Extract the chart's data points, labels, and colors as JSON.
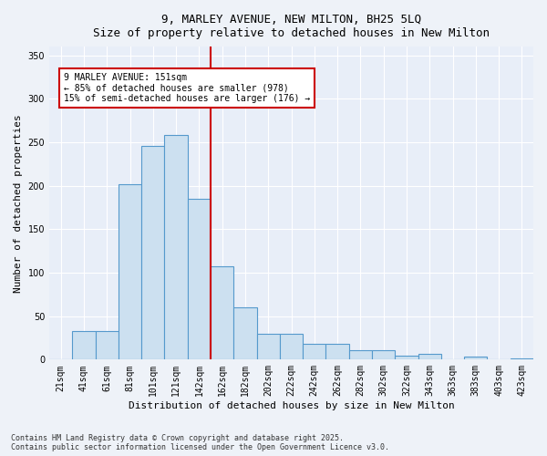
{
  "title1": "9, MARLEY AVENUE, NEW MILTON, BH25 5LQ",
  "title2": "Size of property relative to detached houses in New Milton",
  "xlabel": "Distribution of detached houses by size in New Milton",
  "ylabel": "Number of detached properties",
  "bar_labels": [
    "21sqm",
    "41sqm",
    "61sqm",
    "81sqm",
    "101sqm",
    "121sqm",
    "142sqm",
    "162sqm",
    "182sqm",
    "202sqm",
    "222sqm",
    "242sqm",
    "262sqm",
    "282sqm",
    "302sqm",
    "322sqm",
    "343sqm",
    "363sqm",
    "383sqm",
    "403sqm",
    "423sqm"
  ],
  "bar_values": [
    0,
    33,
    33,
    202,
    246,
    258,
    185,
    107,
    60,
    30,
    30,
    18,
    18,
    11,
    11,
    5,
    7,
    0,
    3,
    0,
    1
  ],
  "bar_color": "#cce0f0",
  "bar_edge_color": "#5599cc",
  "vline_color": "#cc0000",
  "annotation_title": "9 MARLEY AVENUE: 151sqm",
  "annotation_line1": "← 85% of detached houses are smaller (978)",
  "annotation_line2": "15% of semi-detached houses are larger (176) →",
  "annotation_box_facecolor": "#ffffff",
  "annotation_box_edgecolor": "#cc0000",
  "footer1": "Contains HM Land Registry data © Crown copyright and database right 2025.",
  "footer2": "Contains public sector information licensed under the Open Government Licence v3.0.",
  "bg_color": "#eef2f8",
  "plot_bg_color": "#e8eef8",
  "ylim": [
    0,
    360
  ],
  "yticks": [
    0,
    50,
    100,
    150,
    200,
    250,
    300,
    350
  ],
  "title1_fontsize": 9,
  "title2_fontsize": 8,
  "tick_fontsize": 7,
  "ylabel_fontsize": 8,
  "xlabel_fontsize": 8,
  "annotation_fontsize": 7,
  "footer_fontsize": 6
}
